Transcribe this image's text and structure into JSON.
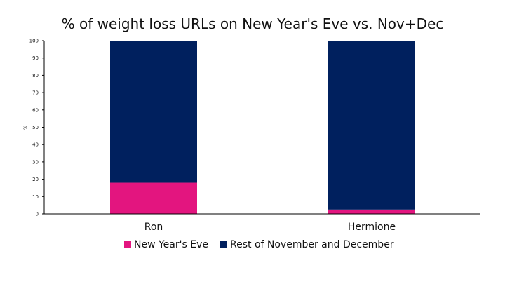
{
  "chart_data": {
    "type": "bar",
    "stacked": true,
    "title": "% of weight loss URLs on New Year's Eve vs. Nov+Dec",
    "xlabel": "",
    "ylabel": "%",
    "ylim": [
      0,
      100
    ],
    "yticks": [
      0,
      10,
      20,
      30,
      40,
      50,
      60,
      70,
      80,
      90,
      100
    ],
    "categories": [
      "Ron",
      "Hermione"
    ],
    "series": [
      {
        "name": "New Year's Eve",
        "values": [
          18,
          2.5
        ],
        "color": "#E3157F"
      },
      {
        "name": "Rest of November and December",
        "values": [
          82,
          97.5
        ],
        "color": "#00205E"
      }
    ],
    "legend_position": "bottom",
    "grid": false
  }
}
